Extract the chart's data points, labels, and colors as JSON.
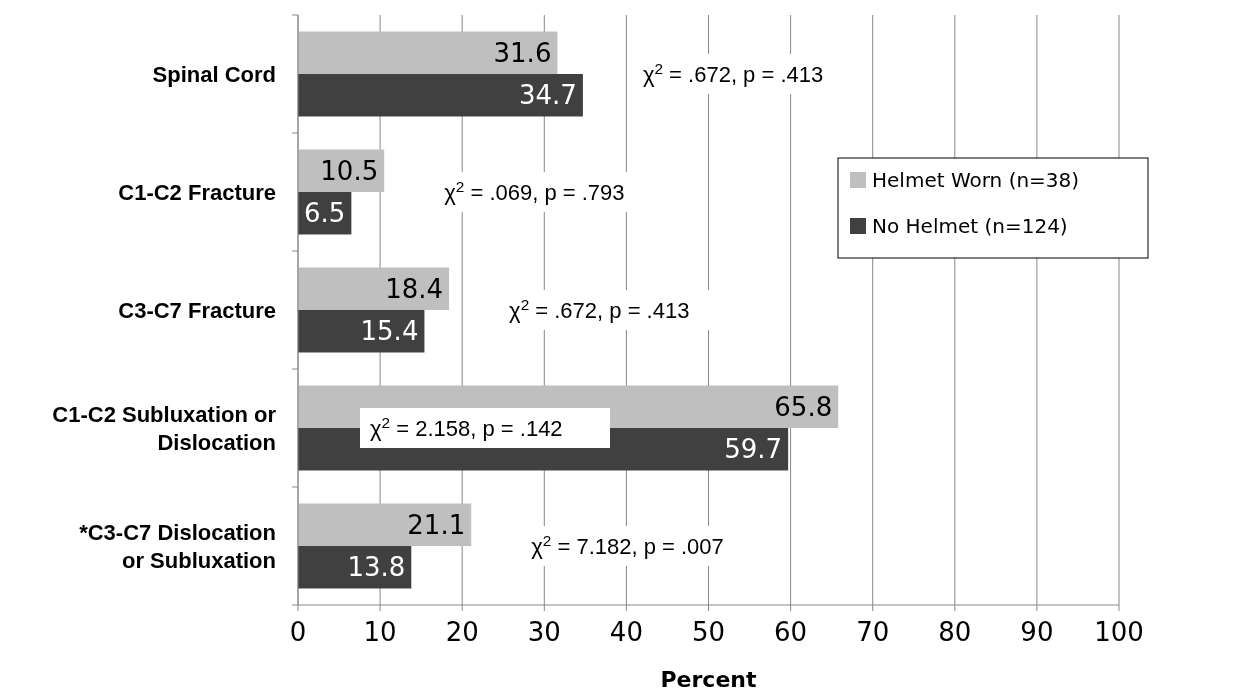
{
  "chart_data": {
    "type": "bar",
    "orientation": "horizontal",
    "xlabel": "Percent",
    "categories": [
      "Spinal Cord",
      "C1-C2 Fracture",
      "C3-C7 Fracture",
      "C1-C2 Subluxation or Dislocation",
      "*C3-C7 Dislocation or Subluxation"
    ],
    "series": [
      {
        "name": "Helmet Worn (n=38)",
        "color": "#bfbfbf",
        "values": [
          31.6,
          10.5,
          18.4,
          65.8,
          21.1
        ]
      },
      {
        "name": "No Helmet (n=124)",
        "color": "#404040",
        "values": [
          34.7,
          6.5,
          15.4,
          59.7,
          13.8
        ]
      }
    ],
    "xlim": [
      0,
      100
    ],
    "xticks": [
      0,
      10,
      20,
      30,
      40,
      50,
      60,
      70,
      80,
      90,
      100
    ],
    "grid": "x",
    "legend": "right",
    "data_labels": true,
    "annotations": [
      "χ$^{2}$ = .672, p = .413",
      "χ$^{2}$ = .069, p = .793",
      "χ$^{2}$ = .672, p = .413",
      "χ$^{2}$ = 2.158, p = .142",
      "χ$^{2}$ = 7.182, p = .007"
    ]
  }
}
